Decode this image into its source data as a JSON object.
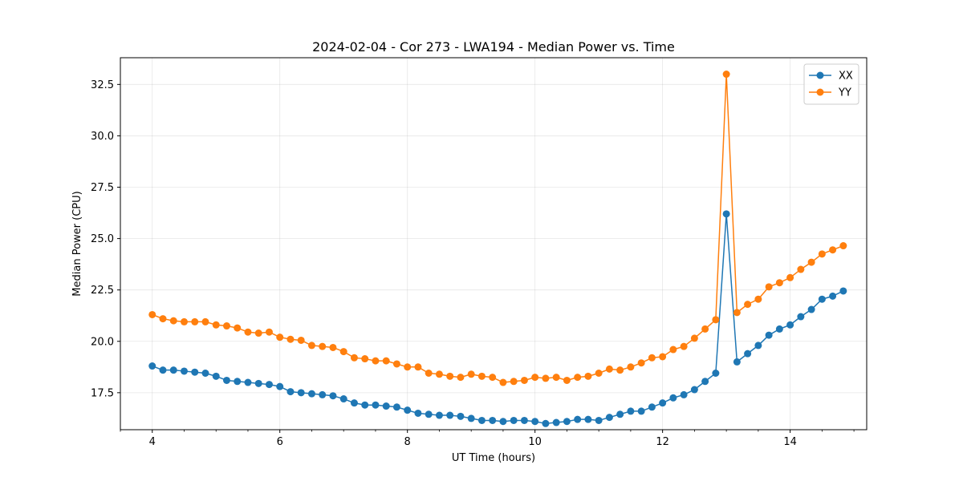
{
  "chart_data": {
    "type": "line",
    "title": "2024-02-04 - Cor 273 - LWA194 - Median Power vs. Time",
    "xlabel": "UT Time (hours)",
    "ylabel": "Median Power (CPU)",
    "xlim": [
      3.5,
      15.2
    ],
    "ylim": [
      15.7,
      33.8
    ],
    "x_ticks": [
      4,
      6,
      8,
      10,
      12,
      14
    ],
    "x_tick_labels": [
      "4",
      "6",
      "8",
      "10",
      "12",
      "14"
    ],
    "x_minor_step": 0.5,
    "y_ticks": [
      17.5,
      20.0,
      22.5,
      25.0,
      27.5,
      30.0,
      32.5
    ],
    "y_tick_labels": [
      "17.5",
      "20.0",
      "22.5",
      "25.0",
      "27.5",
      "30.0",
      "32.5"
    ],
    "grid": true,
    "legend_position": "top-right",
    "x": [
      4.0,
      4.1667,
      4.3333,
      4.5,
      4.6667,
      4.8333,
      5.0,
      5.1667,
      5.3333,
      5.5,
      5.6667,
      5.8333,
      6.0,
      6.1667,
      6.3333,
      6.5,
      6.6667,
      6.8333,
      7.0,
      7.1667,
      7.3333,
      7.5,
      7.6667,
      7.8333,
      8.0,
      8.1667,
      8.3333,
      8.5,
      8.6667,
      8.8333,
      9.0,
      9.1667,
      9.3333,
      9.5,
      9.6667,
      9.8333,
      10.0,
      10.1667,
      10.3333,
      10.5,
      10.6667,
      10.8333,
      11.0,
      11.1667,
      11.3333,
      11.5,
      11.6667,
      11.8333,
      12.0,
      12.1667,
      12.3333,
      12.5,
      12.6667,
      12.8333,
      13.0,
      13.1667,
      13.3333,
      13.5,
      13.6667,
      13.8333,
      14.0,
      14.1667,
      14.3333,
      14.5,
      14.6667,
      14.8333
    ],
    "series": [
      {
        "name": "XX",
        "color": "#1f77b4",
        "values": [
          18.8,
          18.6,
          18.6,
          18.55,
          18.5,
          18.45,
          18.3,
          18.1,
          18.05,
          18.0,
          17.95,
          17.9,
          17.8,
          17.55,
          17.5,
          17.45,
          17.4,
          17.35,
          17.2,
          17.0,
          16.9,
          16.9,
          16.85,
          16.8,
          16.65,
          16.5,
          16.45,
          16.4,
          16.4,
          16.35,
          16.25,
          16.15,
          16.15,
          16.1,
          16.15,
          16.15,
          16.1,
          16.0,
          16.05,
          16.1,
          16.2,
          16.2,
          16.15,
          16.3,
          16.45,
          16.6,
          16.6,
          16.8,
          17.0,
          17.25,
          17.4,
          17.65,
          18.05,
          18.45,
          26.2,
          19.0,
          19.4,
          19.8,
          20.3,
          20.6,
          20.8,
          21.2,
          21.55,
          22.05,
          22.2,
          22.45
        ]
      },
      {
        "name": "YY",
        "color": "#ff7f0e",
        "values": [
          21.3,
          21.1,
          21.0,
          20.95,
          20.95,
          20.95,
          20.8,
          20.75,
          20.65,
          20.45,
          20.4,
          20.45,
          20.2,
          20.1,
          20.05,
          19.8,
          19.75,
          19.7,
          19.5,
          19.2,
          19.15,
          19.05,
          19.05,
          18.9,
          18.75,
          18.75,
          18.45,
          18.4,
          18.3,
          18.25,
          18.4,
          18.3,
          18.25,
          18.0,
          18.05,
          18.1,
          18.25,
          18.2,
          18.25,
          18.1,
          18.25,
          18.3,
          18.45,
          18.65,
          18.6,
          18.75,
          18.95,
          19.2,
          19.25,
          19.6,
          19.75,
          20.15,
          20.6,
          21.05,
          33.0,
          21.4,
          21.8,
          22.05,
          22.65,
          22.85,
          23.1,
          23.5,
          23.85,
          24.25,
          24.45,
          24.65
        ]
      }
    ]
  }
}
